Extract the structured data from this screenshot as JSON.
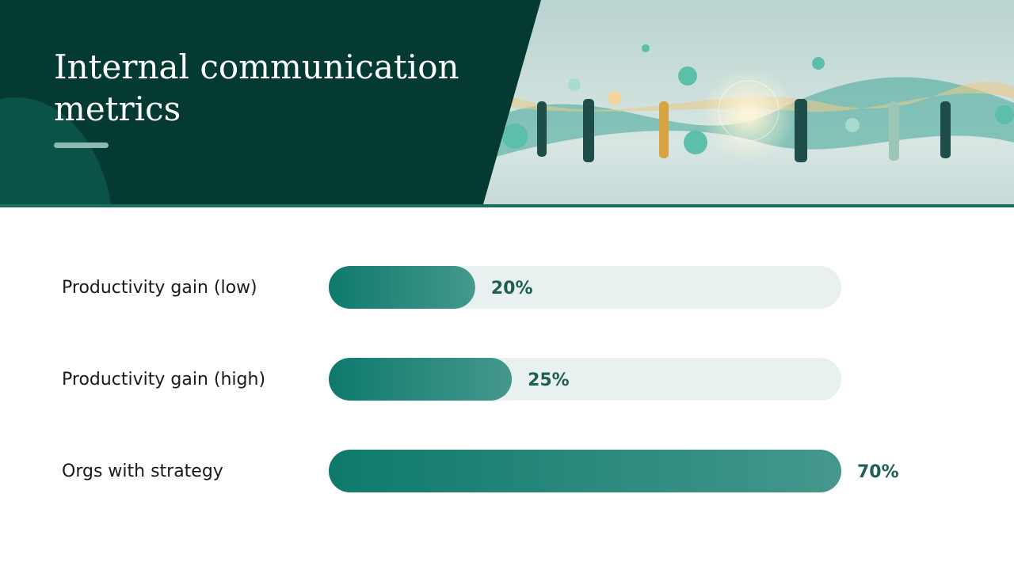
{
  "chart_data": {
    "type": "bar",
    "title": "Internal communication metrics",
    "categories": [
      "Productivity gain (low)",
      "Productivity gain (high)",
      "Orgs with strategy"
    ],
    "values": [
      20,
      25,
      70
    ],
    "value_labels": [
      "20%",
      "25%",
      "70%"
    ],
    "color": "#0e7a6c",
    "xlim": [
      0,
      70
    ]
  }
}
